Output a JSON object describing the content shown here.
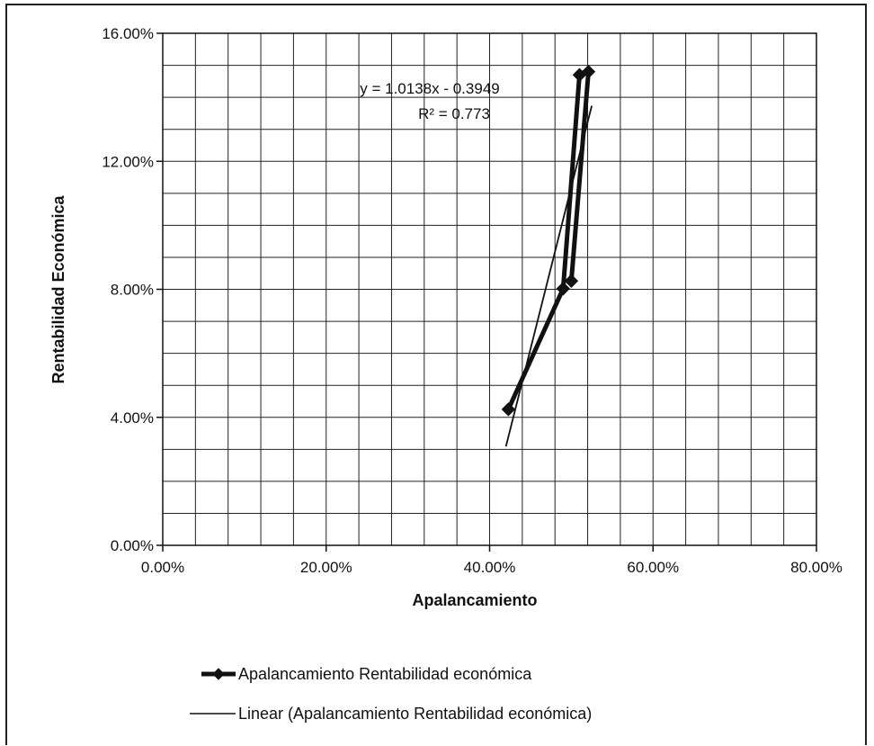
{
  "chart_data": {
    "type": "scatter",
    "xlabel": "Apalancamiento",
    "ylabel": "Rentabilidad Económica",
    "xlim": [
      0,
      0.8
    ],
    "ylim": [
      0,
      0.16
    ],
    "x_ticks": [
      "0.00%",
      "20.00%",
      "40.00%",
      "60.00%",
      "80.00%"
    ],
    "y_ticks": [
      "0.00%",
      "4.00%",
      "8.00%",
      "12.00%",
      "16.00%"
    ],
    "grid": true,
    "legend_position": "bottom",
    "series": [
      {
        "name": "Apalancamiento Rentabilidad económica",
        "style": "line-with-diamond-markers",
        "color": "#111111",
        "points": [
          {
            "x": 0.423,
            "y": 0.0425
          },
          {
            "x": 0.49,
            "y": 0.0802
          },
          {
            "x": 0.51,
            "y": 0.147
          },
          {
            "x": 0.521,
            "y": 0.148
          },
          {
            "x": 0.5,
            "y": 0.0826
          }
        ]
      }
    ],
    "trendline": {
      "name": "Linear (Apalancamiento Rentabilidad económica)",
      "type": "linear",
      "slope": 1.0138,
      "intercept": -0.3949,
      "r_squared": 0.773,
      "x_range": [
        0.42,
        0.525
      ],
      "equation_label": "y = 1.0138x - 0.3949",
      "r2_label": "R² = 0.773",
      "color": "#111111"
    }
  }
}
